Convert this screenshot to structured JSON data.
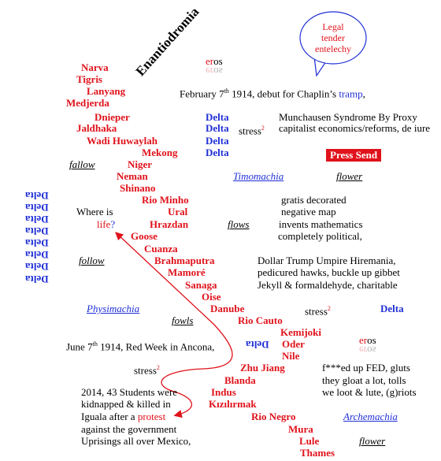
{
  "title": "Enantiodromia",
  "bubble": "Legal tender entelechy",
  "button": "Press Send",
  "rivers": [
    "Narva",
    "Tigris",
    "Lanyang",
    "Medjerda",
    "Dnieper",
    "Jaldhaka",
    "Wadi Huwaylah",
    "Mekong",
    "Niger",
    "Neman",
    "Shinano",
    "Rio Minho",
    "Ural",
    "Hrazdan",
    "Goose",
    "Cuanza",
    "Brahmaputra",
    "Mamoré",
    "Sanaga",
    "Oise",
    "Danube",
    "Rio Cauto",
    "Kemijoki",
    "Oder",
    "Nile",
    "Zhu Jiang",
    "Blanda",
    "Indus",
    "Kızılırmak",
    "Rio Negro",
    "Mura",
    "Lule",
    "Thames"
  ],
  "deltas": [
    "Delta",
    "Delta",
    "Delta",
    "Delta",
    "Delta"
  ],
  "flipped_deltas": [
    "Delta",
    "Delta",
    "Delta",
    "Delta",
    "Delta",
    "Delta",
    "Delta",
    "Delta",
    "Delta"
  ],
  "eros": [
    [
      "er",
      "os"
    ],
    [
      "er",
      "os"
    ]
  ],
  "stress": [
    [
      "stress",
      "2"
    ],
    [
      "stress",
      "2"
    ],
    [
      "stress",
      "2"
    ]
  ],
  "notes": [
    "fallow",
    "Timomachia",
    "flower",
    "flows",
    "follow",
    "Physimachia",
    "fowls",
    "Archemachia",
    "flower"
  ],
  "lines": [
    [
      "February 7",
      "th",
      " 1914, debut for Chaplin’s ",
      "tramp",
      ","
    ],
    [
      "Munchausen Syndrome By Proxy"
    ],
    [
      "capitalist economics/reforms, de iure"
    ],
    [
      "gratis decorated"
    ],
    [
      "negative map"
    ],
    [
      "invents mathematics"
    ],
    [
      "completely political,"
    ],
    [
      "Where is"
    ],
    [
      "life",
      "?"
    ],
    [
      "Dollar Trump Umpire Hiremania,"
    ],
    [
      "pedicured hawks, buckle up gibbet"
    ],
    [
      "Jekyll & formaldehyde, charitable"
    ],
    [
      "June 7",
      "th",
      " 1914, Red Week in Ancona,"
    ],
    [
      "f***ed up FED, gluts"
    ],
    [
      "they gloat a lot, tolls"
    ],
    [
      "we loot & lute, (g)riots"
    ],
    [
      "2014, 43 Students were"
    ],
    [
      "kidnapped & killed in"
    ],
    [
      "Iguala after a ",
      "protest"
    ],
    [
      "against the government"
    ],
    [
      "Uprisings all over Mexico,"
    ]
  ]
}
